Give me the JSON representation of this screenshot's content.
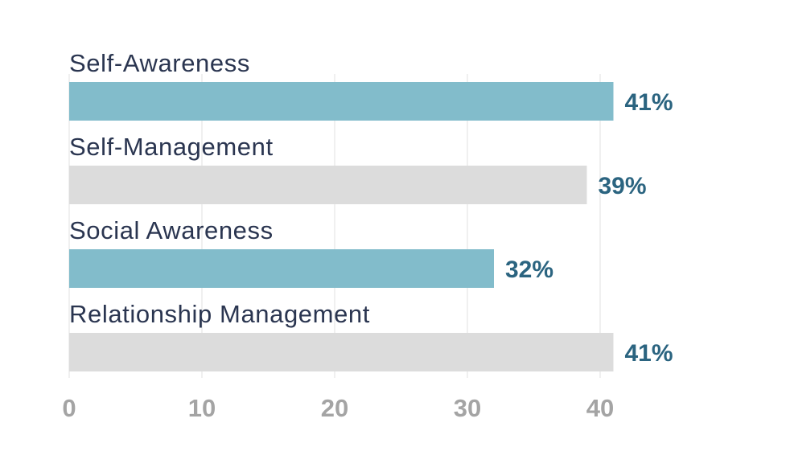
{
  "chart_data": {
    "type": "bar",
    "orientation": "horizontal",
    "categories": [
      "Self-Awareness",
      "Self-Management",
      "Social Awareness",
      "Relationship  Management"
    ],
    "values": [
      41,
      39,
      32,
      41
    ],
    "value_labels": [
      "41%",
      "39%",
      "32%",
      "41%"
    ],
    "bar_colors": [
      "#82bccb",
      "#dcdcdc",
      "#82bccb",
      "#dcdcdc"
    ],
    "value_label_color": "#2b6480",
    "category_label_color": "#2a3550",
    "tick_color": "#a4a4a4",
    "xlim": [
      0,
      40
    ],
    "xticks": [
      "0",
      "10",
      "20",
      "30",
      "40"
    ],
    "title": "",
    "xlabel": "",
    "ylabel": "",
    "grid": true,
    "legend": "none"
  }
}
